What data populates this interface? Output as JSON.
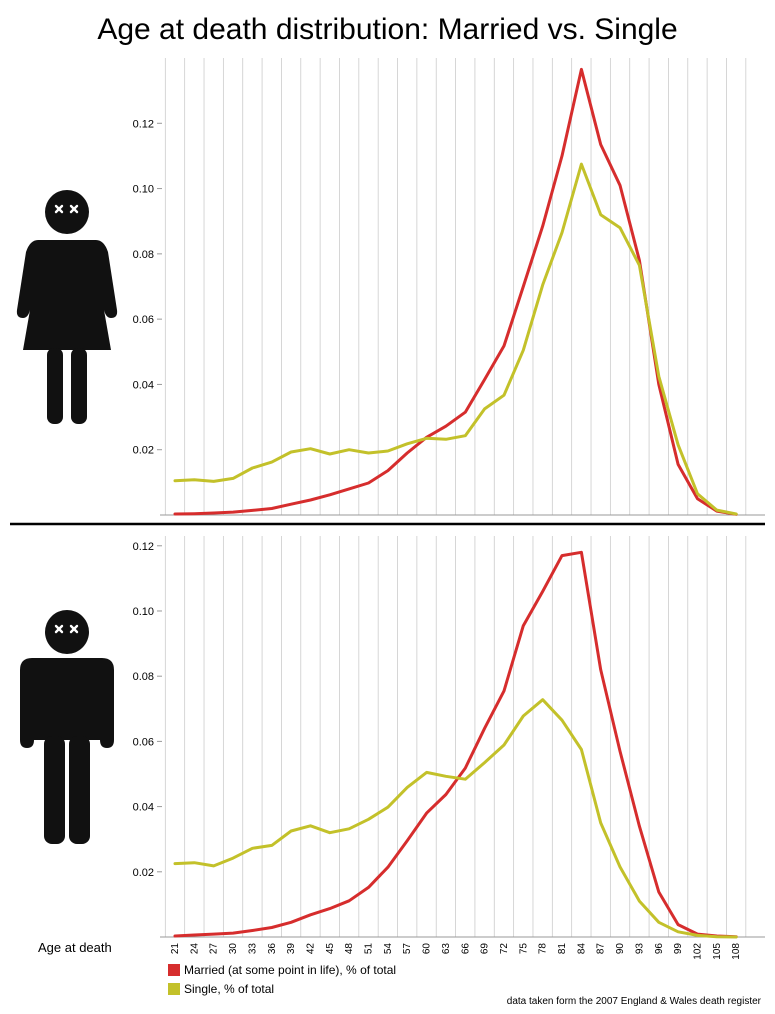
{
  "title": "Age at death distribution: Married vs. Single",
  "icons": [
    "female-figure-dead-icon",
    "male-figure-dead-icon"
  ],
  "colors": {
    "married": "#d62d2d",
    "single": "#c3c12a",
    "grid": "#cccccc",
    "axis": "#999999",
    "divider": "#000000"
  },
  "legend": {
    "married": "Married (at some point in life), % of total",
    "single": "Single, % of total"
  },
  "xlabel": "Age at death",
  "source": "data taken form the 2007 England & Wales death register",
  "chart_data": [
    {
      "type": "line",
      "subject": "female",
      "x": [
        21,
        24,
        27,
        30,
        33,
        36,
        39,
        42,
        45,
        48,
        51,
        54,
        57,
        60,
        63,
        66,
        69,
        72,
        75,
        78,
        81,
        84,
        87,
        90,
        93,
        96,
        99,
        102,
        105,
        108
      ],
      "ylim": [
        0,
        0.14
      ],
      "yticks": [
        0.02,
        0.04,
        0.06,
        0.08,
        0.1,
        0.12
      ],
      "ytick_labels": [
        "0.02",
        "0.04",
        "0.06",
        "0.08",
        "0.10",
        "0.12"
      ],
      "series": [
        {
          "name": "Married (at some point in life), % of total",
          "key": "married",
          "values": [
            0.0003,
            0.0004,
            0.0006,
            0.0009,
            0.0014,
            0.002,
            0.0033,
            0.0046,
            0.0062,
            0.008,
            0.0098,
            0.0136,
            0.019,
            0.0238,
            0.0272,
            0.0315,
            0.0415,
            0.0518,
            0.07,
            0.0885,
            0.11,
            0.1365,
            0.1135,
            0.101,
            0.078,
            0.04,
            0.0155,
            0.005,
            0.0012,
            0.0002
          ]
        },
        {
          "name": "Single, % of total",
          "key": "single",
          "values": [
            0.0105,
            0.0108,
            0.0103,
            0.0112,
            0.0144,
            0.0162,
            0.0193,
            0.0203,
            0.0187,
            0.02,
            0.019,
            0.0196,
            0.0218,
            0.0235,
            0.0232,
            0.0243,
            0.0325,
            0.0367,
            0.0505,
            0.0705,
            0.0865,
            0.1075,
            0.092,
            0.088,
            0.0765,
            0.0425,
            0.0215,
            0.0065,
            0.0015,
            0.0003
          ]
        }
      ]
    },
    {
      "type": "line",
      "subject": "male",
      "x": [
        21,
        24,
        27,
        30,
        33,
        36,
        39,
        42,
        45,
        48,
        51,
        54,
        57,
        60,
        63,
        66,
        69,
        72,
        75,
        78,
        81,
        84,
        87,
        90,
        93,
        96,
        99,
        102,
        105,
        108
      ],
      "ylim": [
        0,
        0.123
      ],
      "yticks": [
        0.02,
        0.04,
        0.06,
        0.08,
        0.1,
        0.12
      ],
      "ytick_labels": [
        "0.02",
        "0.04",
        "0.06",
        "0.08",
        "0.10",
        "0.12"
      ],
      "series": [
        {
          "name": "Married (at some point in life), % of total",
          "key": "married",
          "values": [
            0.0003,
            0.0006,
            0.0009,
            0.0012,
            0.002,
            0.0029,
            0.0045,
            0.0068,
            0.0087,
            0.0111,
            0.0152,
            0.0214,
            0.0295,
            0.038,
            0.0437,
            0.0518,
            0.064,
            0.0755,
            0.0955,
            0.106,
            0.117,
            0.118,
            0.082,
            0.057,
            0.034,
            0.0138,
            0.0038,
            0.0009,
            0.0003,
            0.0001
          ]
        },
        {
          "name": "Single, % of total",
          "key": "single",
          "values": [
            0.0225,
            0.0228,
            0.0218,
            0.0242,
            0.0272,
            0.0281,
            0.0325,
            0.0341,
            0.032,
            0.0332,
            0.0361,
            0.0398,
            0.0459,
            0.0505,
            0.0493,
            0.0484,
            0.0535,
            0.0589,
            0.0678,
            0.0728,
            0.0665,
            0.0575,
            0.035,
            0.0215,
            0.011,
            0.0045,
            0.0016,
            0.0005,
            0.0001,
            0.0
          ]
        }
      ]
    }
  ]
}
